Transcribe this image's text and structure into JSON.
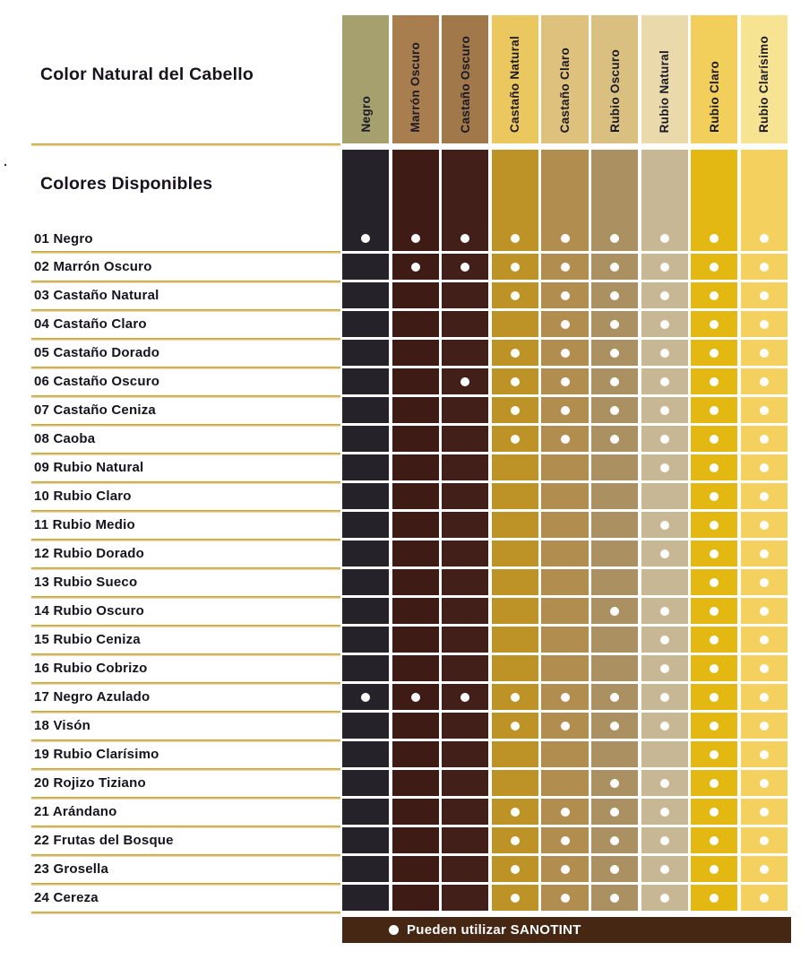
{
  "page": {
    "title": "Color Natural del Cabello",
    "subtitle": "Colores Disponibles",
    "stray_mark": "."
  },
  "colors": {
    "separator_gold": "#c8a53e",
    "separator_gold_light": "#ead7a0",
    "legend_bg": "#452713",
    "dot": "#ffffff",
    "text_dark": "#17141f"
  },
  "chart_data": {
    "type": "table",
    "title": "Color Natural del Cabello",
    "rows_axis_label": "Colores Disponibles",
    "legend": "Pueden utilizar SANOTINT",
    "legend_note": "dot = can use SANOTINT on this natural hair color",
    "columns": [
      {
        "label": "Negro",
        "header_color": "#a5a06e",
        "body_color": "#26222a"
      },
      {
        "label": "Marrón Oscuro",
        "header_color": "#a87e4e",
        "body_color": "#3e1c15"
      },
      {
        "label": "Castaño Oscuro",
        "header_color": "#a0784a",
        "body_color": "#422019"
      },
      {
        "label": "Castaño Natural",
        "header_color": "#eac75f",
        "body_color": "#bd9226"
      },
      {
        "label": "Castaño Claro",
        "header_color": "#ddc17c",
        "body_color": "#b18d50"
      },
      {
        "label": "Rubio Oscuro",
        "header_color": "#d9bf80",
        "body_color": "#ab9161"
      },
      {
        "label": "Rubio Natural",
        "header_color": "#e9d9ab",
        "body_color": "#c8b795"
      },
      {
        "label": "Rubio Claro",
        "header_color": "#f2cf5b",
        "body_color": "#e3b812"
      },
      {
        "label": "Rubio Clarísimo",
        "header_color": "#f7e492",
        "body_color": "#f4d05e"
      }
    ],
    "rows": [
      {
        "label": "01 Negro",
        "dots": [
          1,
          1,
          1,
          1,
          1,
          1,
          1,
          1,
          1
        ]
      },
      {
        "label": "02 Marrón Oscuro",
        "dots": [
          0,
          1,
          1,
          1,
          1,
          1,
          1,
          1,
          1
        ]
      },
      {
        "label": "03 Castaño Natural",
        "dots": [
          0,
          0,
          0,
          1,
          1,
          1,
          1,
          1,
          1
        ]
      },
      {
        "label": "04 Castaño Claro",
        "dots": [
          0,
          0,
          0,
          0,
          1,
          1,
          1,
          1,
          1
        ]
      },
      {
        "label": "05 Castaño Dorado",
        "dots": [
          0,
          0,
          0,
          1,
          1,
          1,
          1,
          1,
          1
        ]
      },
      {
        "label": "06 Castaño Oscuro",
        "dots": [
          0,
          0,
          1,
          1,
          1,
          1,
          1,
          1,
          1
        ]
      },
      {
        "label": "07 Castaño Ceniza",
        "dots": [
          0,
          0,
          0,
          1,
          1,
          1,
          1,
          1,
          1
        ]
      },
      {
        "label": "08 Caoba",
        "dots": [
          0,
          0,
          0,
          1,
          1,
          1,
          1,
          1,
          1
        ]
      },
      {
        "label": "09 Rubio Natural",
        "dots": [
          0,
          0,
          0,
          0,
          0,
          0,
          1,
          1,
          1
        ]
      },
      {
        "label": "10 Rubio Claro",
        "dots": [
          0,
          0,
          0,
          0,
          0,
          0,
          0,
          1,
          1
        ]
      },
      {
        "label": "11 Rubio Medio",
        "dots": [
          0,
          0,
          0,
          0,
          0,
          0,
          1,
          1,
          1
        ]
      },
      {
        "label": "12 Rubio Dorado",
        "dots": [
          0,
          0,
          0,
          0,
          0,
          0,
          1,
          1,
          1
        ]
      },
      {
        "label": "13 Rubio Sueco",
        "dots": [
          0,
          0,
          0,
          0,
          0,
          0,
          0,
          1,
          1
        ]
      },
      {
        "label": "14 Rubio Oscuro",
        "dots": [
          0,
          0,
          0,
          0,
          0,
          1,
          1,
          1,
          1
        ]
      },
      {
        "label": "15 Rubio Ceniza",
        "dots": [
          0,
          0,
          0,
          0,
          0,
          0,
          1,
          1,
          1
        ]
      },
      {
        "label": "16 Rubio Cobrizo",
        "dots": [
          0,
          0,
          0,
          0,
          0,
          0,
          1,
          1,
          1
        ]
      },
      {
        "label": "17 Negro Azulado",
        "dots": [
          1,
          1,
          1,
          1,
          1,
          1,
          1,
          1,
          1
        ]
      },
      {
        "label": "18 Visón",
        "dots": [
          0,
          0,
          0,
          1,
          1,
          1,
          1,
          1,
          1
        ]
      },
      {
        "label": "19 Rubio Clarísimo",
        "dots": [
          0,
          0,
          0,
          0,
          0,
          0,
          0,
          1,
          1
        ]
      },
      {
        "label": "20 Rojizo Tiziano",
        "dots": [
          0,
          0,
          0,
          0,
          0,
          1,
          1,
          1,
          1
        ]
      },
      {
        "label": "21 Arándano",
        "dots": [
          0,
          0,
          0,
          1,
          1,
          1,
          1,
          1,
          1
        ]
      },
      {
        "label": "22 Frutas del Bosque",
        "dots": [
          0,
          0,
          0,
          1,
          1,
          1,
          1,
          1,
          1
        ]
      },
      {
        "label": "23 Grosella",
        "dots": [
          0,
          0,
          0,
          1,
          1,
          1,
          1,
          1,
          1
        ]
      },
      {
        "label": "24 Cereza",
        "dots": [
          0,
          0,
          0,
          1,
          1,
          1,
          1,
          1,
          1
        ]
      }
    ]
  }
}
